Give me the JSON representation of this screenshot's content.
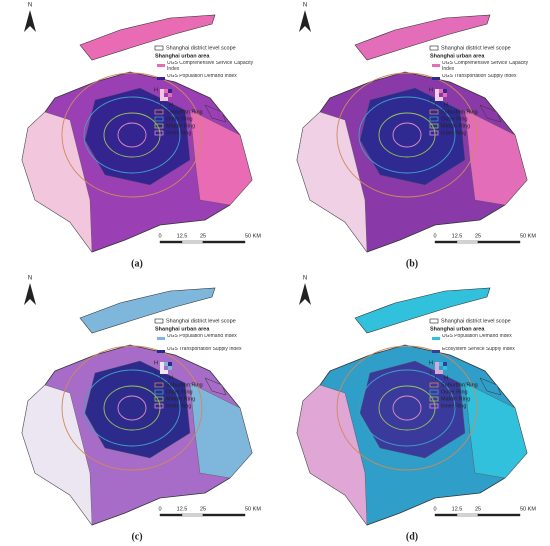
{
  "ring_colors": [
    "#d08a5a",
    "#3f9fc4",
    "#9cc25a",
    "#e08cc4"
  ],
  "panels": [
    {
      "label": "(a)",
      "north": "N",
      "legend": {
        "district": "Shanghai district level scope",
        "urban": "Shanghai urban area",
        "index_1": "UGS Comprehensive Service Capacity Index",
        "index_2": "UGS Population Demand Index",
        "high_y": "H",
        "low_y": "L",
        "low_x": "L",
        "high_x": "H",
        "rings": [
          "Suburban Ring",
          "Outer Ring",
          "Middle Ring",
          "Inner Ring"
        ]
      },
      "scale": [
        "0",
        "12.5",
        "25",
        "50 KM"
      ],
      "colors": [
        "#9b3fb5",
        "#e86bb4",
        "#f2c6dc",
        "#34248f"
      ]
    },
    {
      "label": "(b)",
      "north": "N",
      "legend": {
        "district": "Shanghai district level scope",
        "urban": "Shanghai urban area",
        "index_1": "UGS Comprehensive Service Capacity Index",
        "index_2": "UGS Transportation Supply Index",
        "high_y": "H",
        "low_y": "L",
        "low_x": "L",
        "high_x": "H",
        "rings": [
          "Suburban Ring",
          "Outer Ring",
          "Middle Ring",
          "Inner Ring"
        ]
      },
      "scale": [
        "0",
        "12.5",
        "25",
        "50 KM"
      ],
      "colors": [
        "#8a3aa8",
        "#e36db8",
        "#f0d0e4",
        "#2f2a92"
      ]
    },
    {
      "label": "(c)",
      "north": "N",
      "legend": {
        "district": "Shanghai district level scope",
        "urban": "Shanghai urban area",
        "index_1": "UGS Population Demand Index",
        "index_2": "UGS Transportation Supply Index",
        "high_y": "H",
        "low_y": "L",
        "low_x": "L",
        "high_x": "H",
        "rings": [
          "Suburban Ring",
          "Outer Ring",
          "Middle Ring",
          "Inner Ring"
        ]
      },
      "scale": [
        "0",
        "12.5",
        "25",
        "50 KM"
      ],
      "colors": [
        "#a66cc8",
        "#7fb6dc",
        "#ece6f2",
        "#2c2b8c"
      ]
    },
    {
      "label": "(d)",
      "north": "N",
      "legend": {
        "district": "Shanghai district level scope",
        "urban": "Shanghai urban area",
        "index_1": "UGS Population Demand Index",
        "index_2": "Ecosystem Service Supply Index",
        "high_y": "H",
        "low_y": "L",
        "low_x": "L",
        "high_x": "H",
        "rings": [
          "Suburban Ring",
          "Outer Ring",
          "Middle Ring",
          "Inner Ring"
        ]
      },
      "scale": [
        "0",
        "12.5",
        "25",
        "50 KM"
      ],
      "colors": [
        "#2f9ec8",
        "#31c1dc",
        "#e0a6d6",
        "#3a3a9c"
      ]
    }
  ]
}
